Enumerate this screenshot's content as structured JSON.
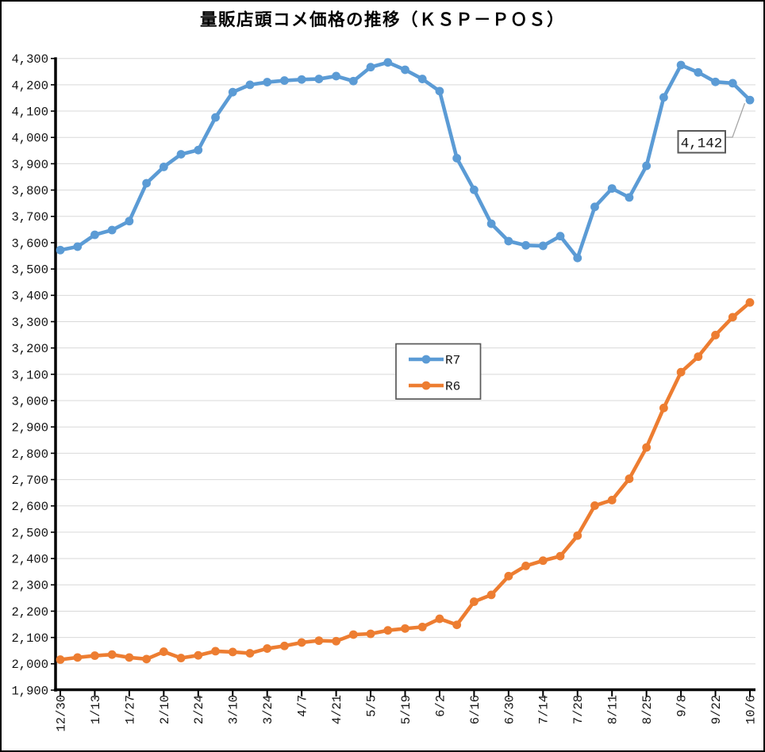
{
  "title": "量販店頭コメ価格の推移（ＫＳＰ－ＰＯＳ）",
  "colors": {
    "r7_blue": "#5B9BD5",
    "r6_orange": "#ED7D31",
    "gridline": "#D9D9D9",
    "axis": "#000000",
    "legend_border": "#595959",
    "annotation_border": "#595959",
    "leader_line": "#A6A6A6",
    "tick_text": "#141414"
  },
  "legend": {
    "entries": [
      {
        "label": "R7",
        "color": "#5B9BD5"
      },
      {
        "label": "R6",
        "color": "#ED7D31"
      }
    ]
  },
  "annotation": {
    "label": "4,142"
  },
  "chart_data": {
    "type": "line",
    "title": "量販店頭コメ価格の推移（ＫＳＰ－ＰＯＳ）",
    "x": [
      "12/30",
      "1/6",
      "1/13",
      "1/20",
      "1/27",
      "2/3",
      "2/10",
      "2/17",
      "2/24",
      "3/3",
      "3/10",
      "3/17",
      "3/24",
      "3/31",
      "4/7",
      "4/14",
      "4/21",
      "4/28",
      "5/5",
      "5/12",
      "5/19",
      "5/26",
      "6/2",
      "6/9",
      "6/16",
      "6/23",
      "6/30",
      "7/7",
      "7/14",
      "7/21",
      "7/28",
      "8/4",
      "8/11",
      "8/18",
      "8/25",
      "9/1",
      "9/8",
      "9/15",
      "9/22",
      "9/29",
      "10/6"
    ],
    "x_tick_labels": [
      "12/30",
      "1/13",
      "1/27",
      "2/10",
      "2/24",
      "3/10",
      "3/24",
      "4/7",
      "4/21",
      "5/5",
      "5/19",
      "6/2",
      "6/16",
      "6/30",
      "7/14",
      "7/28",
      "8/11",
      "8/25",
      "9/8",
      "9/22",
      "10/6"
    ],
    "label_every": 2,
    "series": [
      {
        "name": "R7",
        "color": "#5B9BD5",
        "values": [
          3572,
          3585,
          3630,
          3648,
          3682,
          3826,
          3888,
          3936,
          3952,
          4076,
          4172,
          4200,
          4210,
          4216,
          4220,
          4222,
          4233,
          4214,
          4267,
          4285,
          4257,
          4222,
          4176,
          3921,
          3801,
          3672,
          3606,
          3590,
          3588,
          3625,
          3542,
          3736,
          3806,
          3772,
          3892,
          4152,
          4275,
          4247,
          4211,
          4206,
          4142
        ]
      },
      {
        "name": "R6",
        "color": "#ED7D31",
        "values": [
          2016,
          2024,
          2031,
          2035,
          2024,
          2018,
          2046,
          2022,
          2032,
          2048,
          2045,
          2040,
          2058,
          2068,
          2081,
          2088,
          2086,
          2111,
          2114,
          2127,
          2134,
          2140,
          2171,
          2148,
          2236,
          2262,
          2333,
          2372,
          2392,
          2409,
          2487,
          2601,
          2622,
          2703,
          2822,
          2972,
          3108,
          3167,
          3249,
          3317,
          3373
        ]
      }
    ],
    "ylim": [
      1900,
      4300
    ],
    "ytick_step": 100,
    "grid": true,
    "legend_position": "center",
    "annotation": {
      "series": "R7",
      "index": 40,
      "label": "4,142"
    }
  }
}
